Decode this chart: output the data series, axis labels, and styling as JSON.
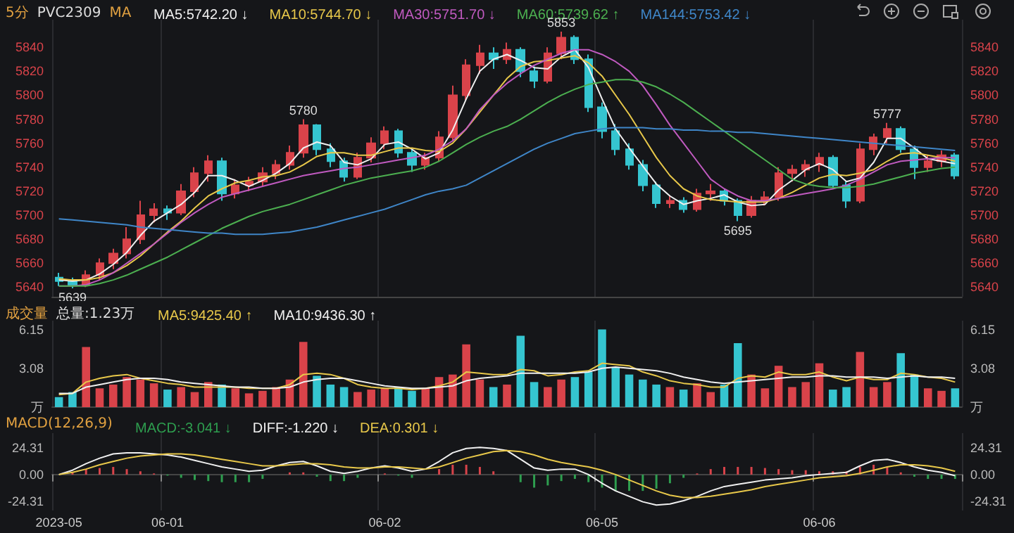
{
  "chart_data": [
    {
      "type": "candlestick",
      "title": "5分",
      "subtitle": "PVC2309",
      "legend_title": "MA",
      "legend": "top left",
      "grid": "x",
      "tick_labels": "y",
      "categories": [
        null,
        null,
        null,
        null,
        null,
        null,
        null,
        null,
        null,
        null,
        null,
        null,
        null,
        null,
        null,
        null,
        null,
        null,
        null,
        null,
        null,
        null,
        null,
        null,
        null,
        null,
        null,
        null,
        null,
        null,
        null,
        null,
        null,
        null,
        null,
        null,
        null,
        null,
        null,
        null,
        null,
        null,
        null,
        null,
        null,
        null,
        null,
        null,
        null,
        null,
        null,
        null,
        null,
        null,
        null,
        null,
        null,
        null,
        null,
        null,
        null,
        null,
        null,
        null,
        null,
        null,
        null
      ],
      "ylim": [
        5632,
        5863
      ],
      "yticks": [
        5640,
        5660,
        5680,
        5700,
        5720,
        5740,
        5760,
        5780,
        5800,
        5820,
        5840
      ],
      "y2lim": [
        5632,
        5863
      ],
      "y2ticks": [
        5640,
        5660,
        5680,
        5700,
        5720,
        5740,
        5760,
        5780,
        5800,
        5820,
        5840
      ],
      "ohlc": [
        [
          5648,
          5652,
          5641,
          5645
        ],
        [
          5645,
          5648,
          5639,
          5642
        ],
        [
          5642,
          5654,
          5640,
          5650
        ],
        [
          5650,
          5664,
          5646,
          5660
        ],
        [
          5660,
          5672,
          5655,
          5668
        ],
        [
          5668,
          5690,
          5664,
          5680
        ],
        [
          5680,
          5712,
          5676,
          5700
        ],
        [
          5700,
          5710,
          5694,
          5705
        ],
        [
          5705,
          5708,
          5696,
          5702
        ],
        [
          5702,
          5726,
          5700,
          5720
        ],
        [
          5720,
          5740,
          5715,
          5735
        ],
        [
          5735,
          5750,
          5728,
          5745
        ],
        [
          5745,
          5748,
          5712,
          5718
        ],
        [
          5718,
          5730,
          5714,
          5725
        ],
        [
          5725,
          5732,
          5720,
          5728
        ],
        [
          5728,
          5740,
          5724,
          5735
        ],
        [
          5735,
          5746,
          5730,
          5742
        ],
        [
          5742,
          5758,
          5738,
          5752
        ],
        [
          5752,
          5780,
          5748,
          5775
        ],
        [
          5775,
          5776,
          5750,
          5755
        ],
        [
          5755,
          5760,
          5740,
          5745
        ],
        [
          5745,
          5748,
          5728,
          5732
        ],
        [
          5732,
          5752,
          5730,
          5748
        ],
        [
          5748,
          5765,
          5744,
          5760
        ],
        [
          5760,
          5774,
          5755,
          5770
        ],
        [
          5770,
          5772,
          5748,
          5752
        ],
        [
          5752,
          5755,
          5736,
          5742
        ],
        [
          5742,
          5752,
          5738,
          5748
        ],
        [
          5748,
          5770,
          5745,
          5765
        ],
        [
          5765,
          5808,
          5762,
          5800
        ],
        [
          5800,
          5830,
          5796,
          5825
        ],
        [
          5825,
          5842,
          5818,
          5835
        ],
        [
          5835,
          5840,
          5822,
          5830
        ],
        [
          5830,
          5844,
          5826,
          5838
        ],
        [
          5838,
          5840,
          5815,
          5820
        ],
        [
          5820,
          5824,
          5806,
          5812
        ],
        [
          5812,
          5840,
          5810,
          5835
        ],
        [
          5835,
          5853,
          5830,
          5848
        ],
        [
          5848,
          5850,
          5826,
          5830
        ],
        [
          5830,
          5834,
          5786,
          5790
        ],
        [
          5790,
          5794,
          5764,
          5770
        ],
        [
          5770,
          5776,
          5750,
          5755
        ],
        [
          5755,
          5760,
          5738,
          5742
        ],
        [
          5742,
          5746,
          5720,
          5725
        ],
        [
          5725,
          5728,
          5706,
          5710
        ],
        [
          5710,
          5716,
          5706,
          5712
        ],
        [
          5712,
          5715,
          5702,
          5705
        ],
        [
          5705,
          5722,
          5703,
          5718
        ],
        [
          5718,
          5726,
          5712,
          5720
        ],
        [
          5720,
          5722,
          5708,
          5712
        ],
        [
          5712,
          5714,
          5695,
          5700
        ],
        [
          5700,
          5716,
          5698,
          5712
        ],
        [
          5712,
          5720,
          5708,
          5715
        ],
        [
          5715,
          5740,
          5712,
          5735
        ],
        [
          5735,
          5742,
          5728,
          5738
        ],
        [
          5738,
          5746,
          5732,
          5742
        ],
        [
          5742,
          5752,
          5736,
          5748
        ],
        [
          5748,
          5750,
          5722,
          5725
        ],
        [
          5725,
          5728,
          5706,
          5712
        ],
        [
          5712,
          5760,
          5710,
          5755
        ],
        [
          5755,
          5768,
          5750,
          5765
        ],
        [
          5765,
          5777,
          5760,
          5772
        ],
        [
          5772,
          5774,
          5752,
          5755
        ],
        [
          5755,
          5758,
          5730,
          5740
        ],
        [
          5740,
          5750,
          5736,
          5745
        ],
        [
          5745,
          5754,
          5740,
          5750
        ],
        [
          5750,
          5752,
          5730,
          5733
        ]
      ],
      "colors": [
        "#35c5d0",
        "#35c5d0",
        "#d9434a",
        "#d9434a",
        "#d9434a",
        "#d9434a",
        "#d9434a",
        "#d9434a",
        "#35c5d0",
        "#d9434a",
        "#d9434a",
        "#d9434a",
        "#35c5d0",
        "#d9434a",
        "#d9434a",
        "#d9434a",
        "#d9434a",
        "#d9434a",
        "#d9434a",
        "#35c5d0",
        "#35c5d0",
        "#35c5d0",
        "#d9434a",
        "#d9434a",
        "#d9434a",
        "#35c5d0",
        "#35c5d0",
        "#d9434a",
        "#d9434a",
        "#d9434a",
        "#d9434a",
        "#d9434a",
        "#35c5d0",
        "#d9434a",
        "#35c5d0",
        "#35c5d0",
        "#d9434a",
        "#d9434a",
        "#35c5d0",
        "#35c5d0",
        "#35c5d0",
        "#35c5d0",
        "#35c5d0",
        "#35c5d0",
        "#35c5d0",
        "#d9434a",
        "#35c5d0",
        "#d9434a",
        "#d9434a",
        "#35c5d0",
        "#35c5d0",
        "#d9434a",
        "#d9434a",
        "#d9434a",
        "#d9434a",
        "#d9434a",
        "#d9434a",
        "#35c5d0",
        "#35c5d0",
        "#d9434a",
        "#d9434a",
        "#d9434a",
        "#35c5d0",
        "#35c5d0",
        "#d9434a",
        "#d9434a",
        "#35c5d0"
      ],
      "annotations": [
        {
          "text": "5639",
          "y": 5639
        },
        {
          "text": "5780",
          "y": 5780
        },
        {
          "text": "5853",
          "y": 5853
        },
        {
          "text": "5695",
          "y": 5695
        },
        {
          "text": "5777",
          "y": 5777
        }
      ],
      "series": [
        {
          "type": "line",
          "name": "MA5:5742.20 ↓",
          "color": "#f0f0f0",
          "values": [
            5646,
            5645,
            5646,
            5651,
            5659,
            5669,
            5683,
            5695,
            5702,
            5709,
            5719,
            5733,
            5733,
            5729,
            5724,
            5729,
            5735,
            5743,
            5756,
            5761,
            5758,
            5744,
            5742,
            5747,
            5759,
            5761,
            5755,
            5747,
            5752,
            5771,
            5797,
            5820,
            5830,
            5834,
            5829,
            5823,
            5822,
            5832,
            5838,
            5823,
            5797,
            5772,
            5756,
            5741,
            5726,
            5716,
            5709,
            5712,
            5714,
            5717,
            5711,
            5708,
            5709,
            5721,
            5729,
            5738,
            5743,
            5738,
            5728,
            5731,
            5744,
            5764,
            5764,
            5756,
            5747,
            5745,
            5743
          ]
        },
        {
          "type": "line",
          "name": "MA10:5744.70 ↓",
          "color": "#e8c84a",
          "values": [
            5647,
            5646,
            5646,
            5648,
            5652,
            5658,
            5666,
            5676,
            5686,
            5695,
            5706,
            5716,
            5722,
            5727,
            5729,
            5732,
            5733,
            5736,
            5742,
            5749,
            5752,
            5752,
            5750,
            5750,
            5753,
            5756,
            5756,
            5754,
            5753,
            5760,
            5772,
            5786,
            5800,
            5814,
            5824,
            5828,
            5829,
            5831,
            5833,
            5827,
            5816,
            5800,
            5784,
            5766,
            5748,
            5733,
            5722,
            5716,
            5713,
            5712,
            5711,
            5711,
            5711,
            5714,
            5719,
            5725,
            5731,
            5734,
            5733,
            5735,
            5738,
            5745,
            5751,
            5752,
            5750,
            5748,
            5745
          ]
        },
        {
          "type": "line",
          "name": "MA30:5751.70 ↓",
          "color": "#c05ac0",
          "values": [
            5641,
            5641,
            5642,
            5646,
            5652,
            5660,
            5668,
            5676,
            5685,
            5694,
            5702,
            5709,
            5715,
            5718,
            5721,
            5724,
            5727,
            5730,
            5733,
            5735,
            5737,
            5739,
            5740,
            5742,
            5744,
            5746,
            5748,
            5750,
            5755,
            5762,
            5772,
            5788,
            5800,
            5810,
            5818,
            5825,
            5830,
            5835,
            5838,
            5838,
            5834,
            5828,
            5820,
            5808,
            5792,
            5775,
            5760,
            5745,
            5730,
            5722,
            5716,
            5712,
            5712,
            5714,
            5716,
            5718,
            5720,
            5722,
            5725,
            5730,
            5736,
            5742,
            5745,
            5746,
            5747,
            5748,
            5748
          ]
        },
        {
          "type": "line",
          "name": "MA60:5739.62 ↑",
          "color": "#4caf50",
          "values": [
            5641,
            5641,
            5641,
            5643,
            5646,
            5650,
            5655,
            5660,
            5665,
            5671,
            5677,
            5683,
            5689,
            5694,
            5699,
            5703,
            5706,
            5709,
            5713,
            5717,
            5721,
            5725,
            5728,
            5731,
            5733,
            5735,
            5737,
            5740,
            5745,
            5752,
            5759,
            5765,
            5770,
            5774,
            5780,
            5787,
            5794,
            5800,
            5805,
            5809,
            5811,
            5813,
            5813,
            5811,
            5807,
            5801,
            5794,
            5786,
            5778,
            5770,
            5762,
            5754,
            5746,
            5738,
            5730,
            5726,
            5724,
            5723,
            5723,
            5724,
            5726,
            5729,
            5732,
            5735,
            5737,
            5739,
            5740
          ]
        },
        {
          "type": "line",
          "name": "MA144:5753.42 ↓",
          "color": "#3f86c8",
          "values": [
            5697,
            5696,
            5695,
            5694,
            5693,
            5692,
            5690,
            5689,
            5688,
            5687,
            5686,
            5685,
            5685,
            5684,
            5684,
            5684,
            5685,
            5686,
            5688,
            5690,
            5693,
            5696,
            5699,
            5702,
            5705,
            5709,
            5713,
            5717,
            5720,
            5722,
            5725,
            5731,
            5737,
            5743,
            5749,
            5755,
            5760,
            5764,
            5768,
            5770,
            5772,
            5773,
            5773,
            5773,
            5772,
            5772,
            5771,
            5771,
            5770,
            5770,
            5769,
            5769,
            5768,
            5767,
            5766,
            5765,
            5764,
            5763,
            5762,
            5761,
            5760,
            5759,
            5758,
            5757,
            5756,
            5755,
            5754
          ]
        }
      ]
    },
    {
      "type": "bar",
      "title": "成交量",
      "subtitle": "总量:1.23万",
      "legend": "top left",
      "grid": "x",
      "tick_labels": "y",
      "categories": [
        null,
        null,
        null,
        null,
        null,
        null,
        null,
        null,
        null,
        null,
        null,
        null,
        null,
        null,
        null,
        null,
        null,
        null,
        null,
        null,
        null,
        null,
        null,
        null,
        null,
        null,
        null,
        null,
        null,
        null,
        null,
        null,
        null,
        null,
        null,
        null,
        null,
        null,
        null,
        null,
        null,
        null,
        null,
        null,
        null,
        null,
        null,
        null,
        null,
        null,
        null,
        null,
        null,
        null,
        null,
        null,
        null,
        null,
        null,
        null,
        null,
        null,
        null,
        null,
        null,
        null,
        null
      ],
      "ylim": [
        0,
        6.9
      ],
      "yticks": [
        {
          "value": 0,
          "label": "万"
        },
        3.08,
        6.15
      ],
      "y2lim": [
        0,
        6.9
      ],
      "y2ticks": [
        {
          "value": 0,
          "label": "万"
        },
        3.08,
        6.15
      ],
      "values": [
        0.8,
        1.2,
        4.8,
        1.5,
        1.8,
        2.4,
        2.2,
        1.9,
        1.4,
        1.6,
        1.2,
        2.0,
        1.8,
        1.5,
        1.1,
        1.3,
        1.6,
        2.2,
        5.2,
        2.5,
        1.8,
        1.6,
        1.2,
        1.4,
        1.5,
        1.6,
        1.3,
        1.5,
        2.4,
        2.6,
        5.0,
        2.2,
        1.6,
        1.8,
        5.7,
        2.0,
        1.6,
        2.2,
        2.4,
        2.8,
        6.2,
        3.2,
        2.6,
        2.2,
        1.8,
        1.6,
        1.4,
        1.9,
        1.2,
        1.8,
        5.1,
        2.6,
        1.5,
        3.3,
        1.6,
        2.0,
        3.5,
        1.4,
        1.6,
        4.4,
        1.6,
        2.0,
        4.3,
        2.6,
        1.5,
        1.3,
        1.5
      ],
      "colors": [
        "#35c5d0",
        "#35c5d0",
        "#d9434a",
        "#d9434a",
        "#d9434a",
        "#d9434a",
        "#d9434a",
        "#d9434a",
        "#35c5d0",
        "#d9434a",
        "#d9434a",
        "#d9434a",
        "#35c5d0",
        "#d9434a",
        "#d9434a",
        "#d9434a",
        "#d9434a",
        "#d9434a",
        "#d9434a",
        "#35c5d0",
        "#35c5d0",
        "#35c5d0",
        "#d9434a",
        "#d9434a",
        "#d9434a",
        "#35c5d0",
        "#35c5d0",
        "#d9434a",
        "#d9434a",
        "#d9434a",
        "#d9434a",
        "#d9434a",
        "#35c5d0",
        "#d9434a",
        "#35c5d0",
        "#35c5d0",
        "#d9434a",
        "#d9434a",
        "#35c5d0",
        "#35c5d0",
        "#35c5d0",
        "#35c5d0",
        "#35c5d0",
        "#35c5d0",
        "#35c5d0",
        "#d9434a",
        "#35c5d0",
        "#d9434a",
        "#d9434a",
        "#35c5d0",
        "#35c5d0",
        "#d9434a",
        "#d9434a",
        "#d9434a",
        "#d9434a",
        "#d9434a",
        "#d9434a",
        "#35c5d0",
        "#35c5d0",
        "#d9434a",
        "#d9434a",
        "#d9434a",
        "#35c5d0",
        "#35c5d0",
        "#d9434a",
        "#d9434a",
        "#35c5d0"
      ],
      "series": [
        {
          "type": "line",
          "name": "MA5:9425.40 ↑",
          "color": "#e8c84a",
          "values": [
            1.0,
            1.1,
            2.0,
            2.3,
            2.5,
            2.6,
            2.3,
            2.1,
            1.9,
            1.8,
            1.6,
            1.6,
            1.6,
            1.6,
            1.5,
            1.5,
            1.5,
            1.8,
            2.6,
            2.7,
            2.6,
            2.3,
            1.8,
            1.6,
            1.5,
            1.5,
            1.4,
            1.5,
            1.7,
            2.0,
            2.8,
            2.7,
            2.6,
            2.6,
            3.0,
            2.9,
            2.5,
            2.6,
            2.8,
            2.9,
            3.5,
            3.4,
            3.3,
            2.8,
            2.5,
            2.1,
            1.9,
            1.8,
            1.6,
            1.6,
            2.3,
            2.5,
            2.4,
            2.8,
            2.6,
            2.6,
            2.8,
            2.4,
            2.1,
            2.4,
            2.2,
            2.2,
            2.7,
            2.6,
            2.4,
            2.3,
            2.0
          ]
        },
        {
          "type": "line",
          "name": "MA10:9436.30 ↑",
          "color": "#f0f0f0",
          "values": [
            1.1,
            1.1,
            1.6,
            1.8,
            2.0,
            2.2,
            2.3,
            2.3,
            2.2,
            2.0,
            1.9,
            1.8,
            1.7,
            1.6,
            1.6,
            1.5,
            1.5,
            1.6,
            2.0,
            2.2,
            2.3,
            2.3,
            2.1,
            1.9,
            1.7,
            1.6,
            1.5,
            1.5,
            1.6,
            1.7,
            2.1,
            2.3,
            2.4,
            2.5,
            2.7,
            2.7,
            2.7,
            2.7,
            2.7,
            2.8,
            3.1,
            3.2,
            3.1,
            3.0,
            2.9,
            2.7,
            2.4,
            2.2,
            2.0,
            1.9,
            2.0,
            2.1,
            2.2,
            2.3,
            2.4,
            2.4,
            2.5,
            2.5,
            2.4,
            2.4,
            2.4,
            2.3,
            2.4,
            2.5,
            2.4,
            2.4,
            2.3
          ]
        }
      ]
    },
    {
      "type": "line",
      "title": "MACD(12,26,9)",
      "legend": "top left",
      "grid": "x",
      "categories": [
        "2023-05",
        null,
        null,
        null,
        null,
        null,
        null,
        null,
        "06-01",
        null,
        null,
        null,
        null,
        null,
        null,
        null,
        null,
        null,
        null,
        null,
        null,
        null,
        null,
        null,
        "06-02",
        null,
        null,
        null,
        null,
        null,
        null,
        null,
        null,
        null,
        null,
        null,
        null,
        null,
        null,
        null,
        "06-05",
        null,
        null,
        null,
        null,
        null,
        null,
        null,
        null,
        null,
        null,
        null,
        null,
        null,
        null,
        null,
        "06-06",
        null,
        null,
        null,
        null,
        null,
        null,
        null,
        null,
        null,
        null
      ],
      "ylim": [
        -33,
        38
      ],
      "yticks": [
        -24.31,
        {
          "value": 0,
          "label": "0.00"
        },
        24.31
      ],
      "y2lim": [
        -33,
        38
      ],
      "y2ticks": [
        -24.31,
        {
          "value": 0,
          "label": "0.00"
        },
        24.31
      ],
      "series": [
        {
          "type": "bar",
          "name": "MACD:-3.041 ↓",
          "color": "#2e9e4f",
          "values": [
            0,
            2,
            5,
            6,
            7,
            5,
            3,
            1,
            -1,
            -3,
            -5,
            -6,
            -7,
            -7,
            -7,
            -4,
            0,
            2,
            2,
            -2,
            -6,
            -6,
            -3,
            0,
            1,
            -1,
            -3,
            0,
            5,
            9,
            9,
            7,
            3,
            0,
            -7,
            -12,
            -10,
            -6,
            -4,
            -7,
            -12,
            -15,
            -15,
            -15,
            -13,
            -8,
            -3,
            1,
            5,
            7,
            7,
            7,
            6,
            5,
            4,
            4,
            3,
            3,
            3,
            7,
            9,
            7,
            2,
            -2,
            -4,
            -4,
            -4
          ],
          "colors": [
            "#d9434a",
            "#d9434a",
            "#d9434a",
            "#d9434a",
            "#d9434a",
            "#d9434a",
            "#d9434a",
            "#d9434a",
            "#2e9e4f",
            "#2e9e4f",
            "#2e9e4f",
            "#2e9e4f",
            "#2e9e4f",
            "#2e9e4f",
            "#2e9e4f",
            "#2e9e4f",
            "#d9434a",
            "#d9434a",
            "#d9434a",
            "#2e9e4f",
            "#2e9e4f",
            "#2e9e4f",
            "#2e9e4f",
            "#d9434a",
            "#d9434a",
            "#2e9e4f",
            "#2e9e4f",
            "#d9434a",
            "#d9434a",
            "#d9434a",
            "#d9434a",
            "#d9434a",
            "#d9434a",
            "#d9434a",
            "#2e9e4f",
            "#2e9e4f",
            "#2e9e4f",
            "#2e9e4f",
            "#2e9e4f",
            "#2e9e4f",
            "#2e9e4f",
            "#2e9e4f",
            "#2e9e4f",
            "#2e9e4f",
            "#2e9e4f",
            "#2e9e4f",
            "#2e9e4f",
            "#d9434a",
            "#d9434a",
            "#d9434a",
            "#d9434a",
            "#d9434a",
            "#d9434a",
            "#d9434a",
            "#d9434a",
            "#d9434a",
            "#d9434a",
            "#d9434a",
            "#d9434a",
            "#d9434a",
            "#d9434a",
            "#d9434a",
            "#d9434a",
            "#2e9e4f",
            "#2e9e4f",
            "#2e9e4f",
            "#2e9e4f"
          ]
        },
        {
          "type": "line",
          "name": "DIFF:-1.220 ↓",
          "color": "#f0f0f0",
          "values": [
            0,
            4,
            10,
            15,
            19,
            20,
            20,
            19,
            18,
            16,
            13,
            10,
            7,
            5,
            3,
            4,
            8,
            11,
            12,
            8,
            3,
            1,
            3,
            6,
            8,
            6,
            3,
            5,
            12,
            20,
            24,
            25,
            24,
            22,
            14,
            6,
            4,
            5,
            5,
            0,
            -8,
            -15,
            -20,
            -25,
            -28,
            -27,
            -24,
            -20,
            -15,
            -11,
            -9,
            -7,
            -5,
            -4,
            -3,
            -1,
            0,
            1,
            2,
            8,
            13,
            14,
            11,
            7,
            4,
            2,
            -1
          ]
        },
        {
          "type": "line",
          "name": "DEA:0.301 ↓",
          "color": "#e8c84a",
          "values": [
            0,
            2,
            5,
            9,
            12,
            15,
            17,
            18,
            19,
            19,
            18,
            16,
            14,
            12,
            10,
            8,
            8,
            9,
            10,
            10,
            9,
            7,
            6,
            6,
            7,
            7,
            6,
            5,
            7,
            11,
            15,
            18,
            21,
            22,
            21,
            18,
            14,
            11,
            9,
            7,
            4,
            0,
            -5,
            -10,
            -15,
            -19,
            -21,
            -21,
            -20,
            -18,
            -16,
            -14,
            -11,
            -9,
            -7,
            -5,
            -3,
            -2,
            -1,
            1,
            4,
            7,
            9,
            9,
            8,
            6,
            3
          ]
        }
      ]
    }
  ]
}
